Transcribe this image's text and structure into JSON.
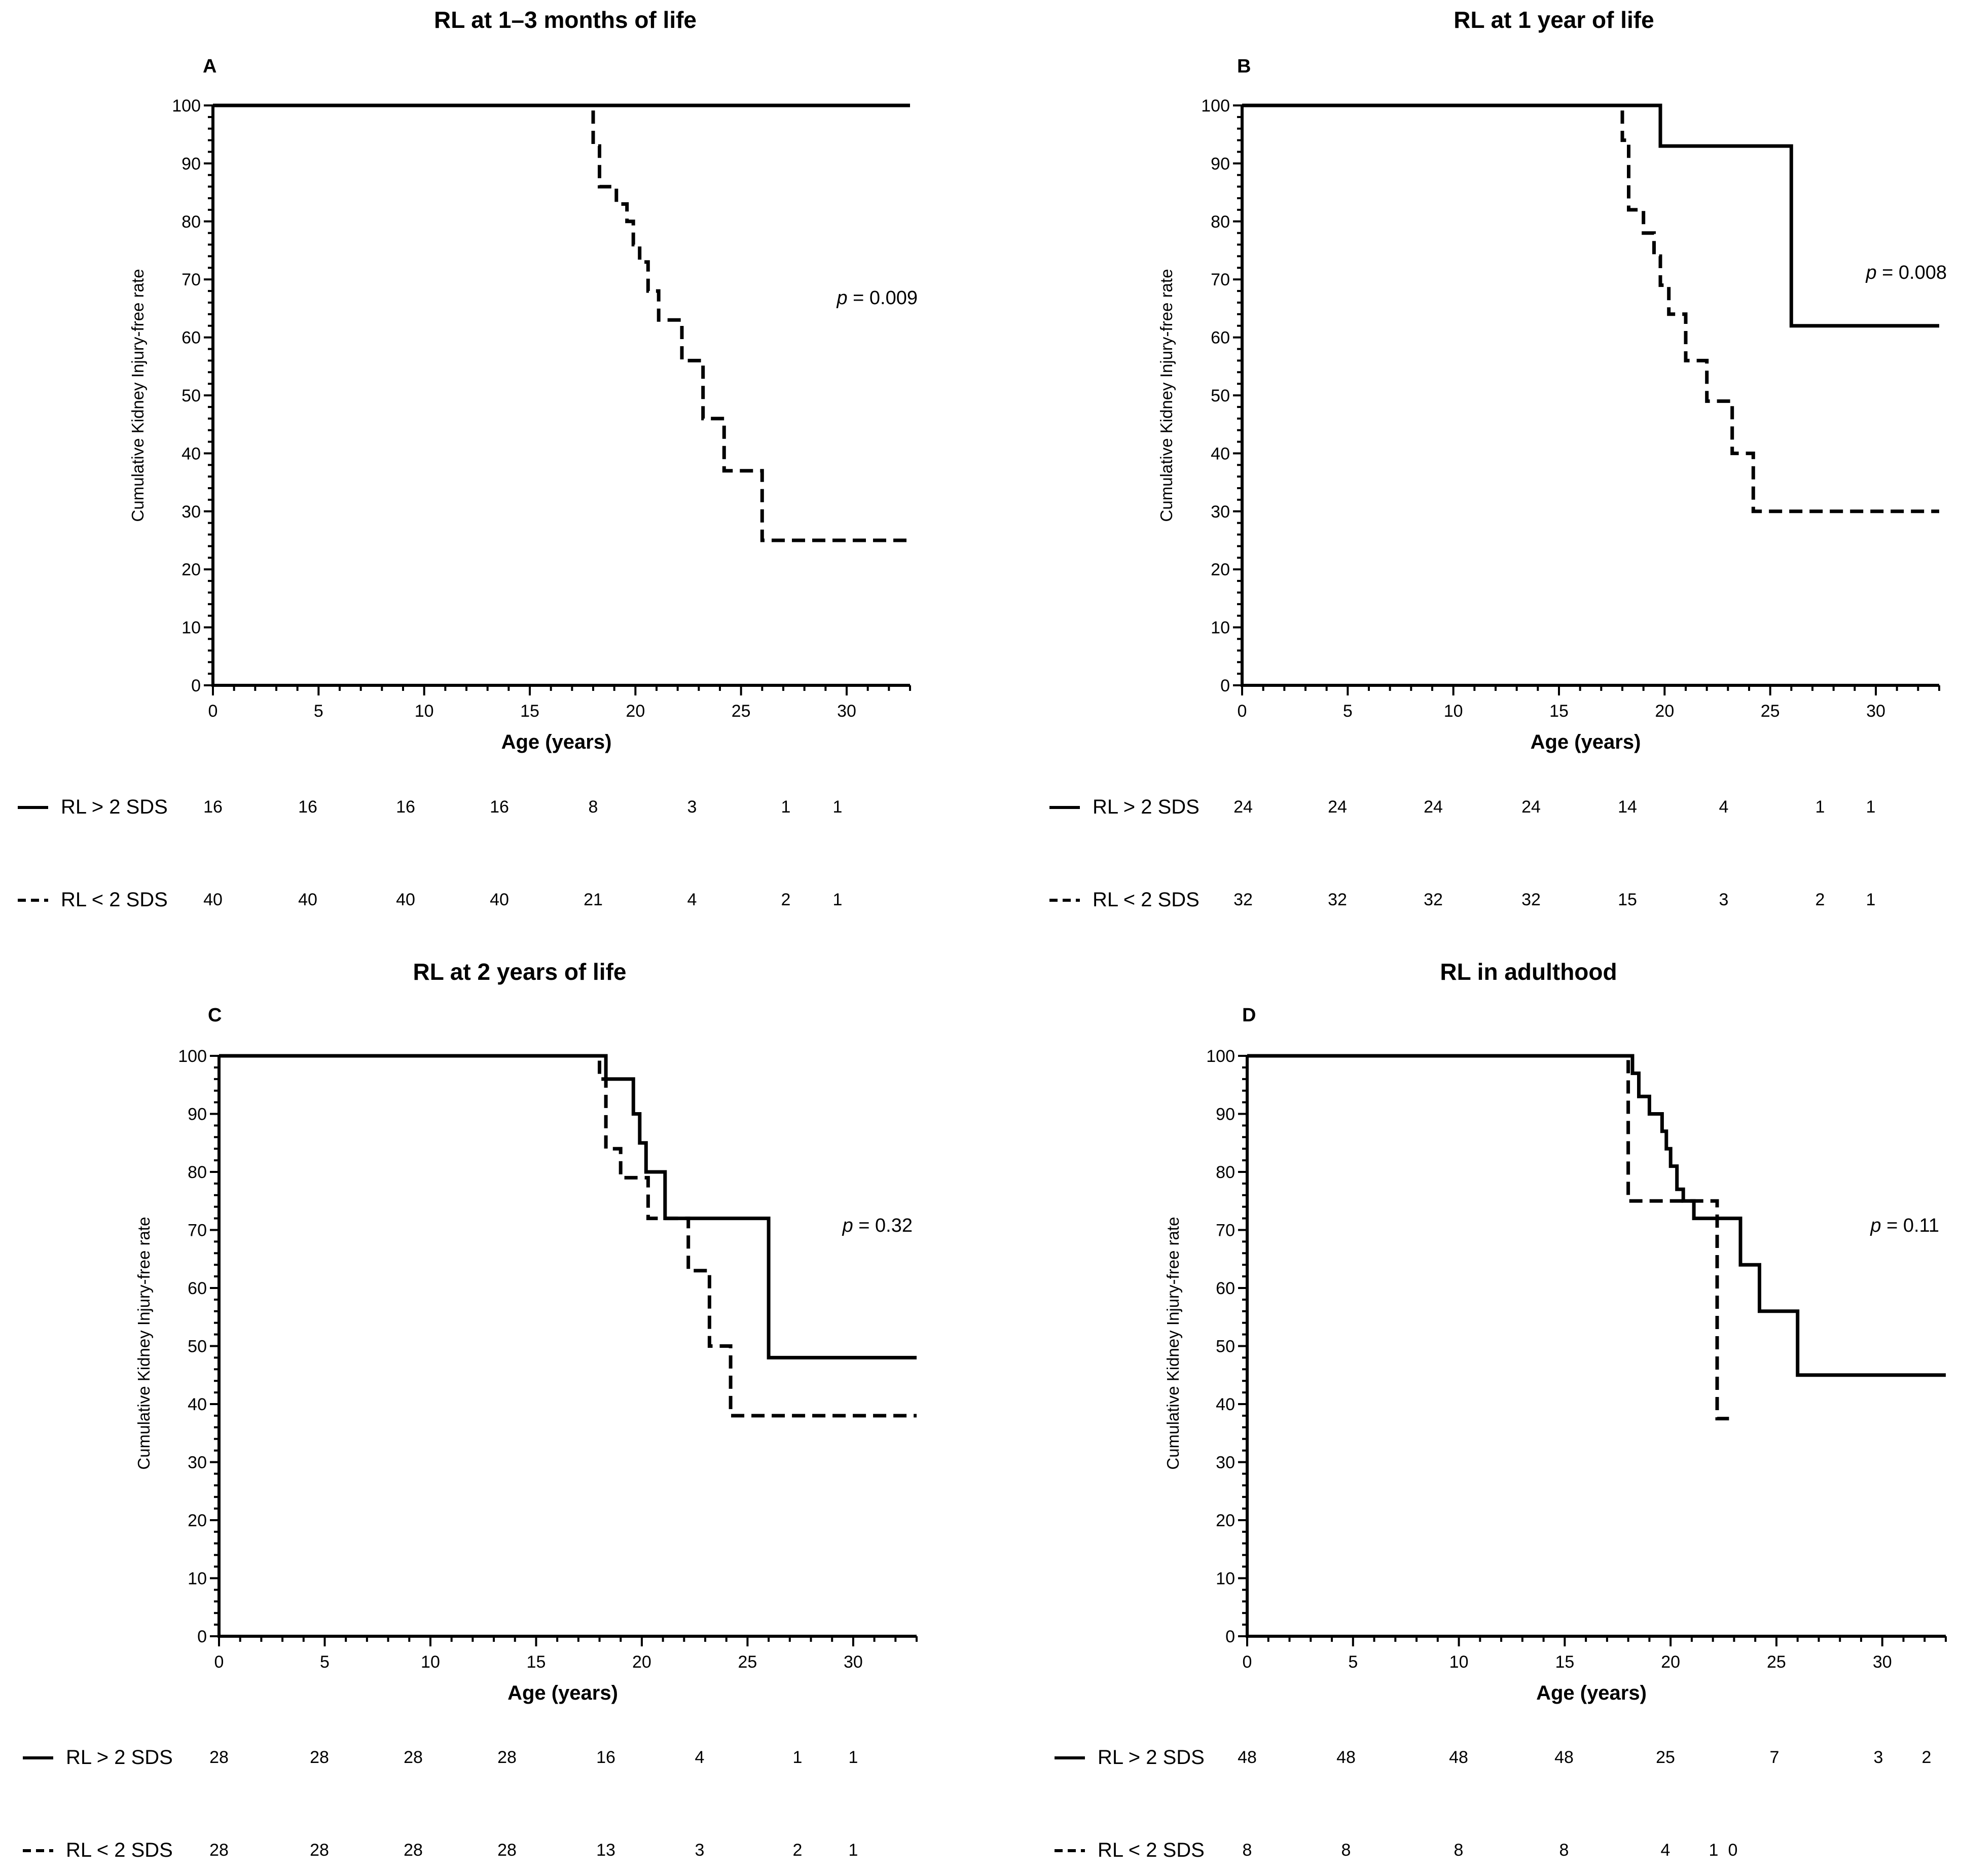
{
  "chart_data": [
    {
      "type": "line",
      "panel_letter": "A",
      "title": "RL at 1–3 months of life",
      "xlabel": "Age (years)",
      "ylabel": "Cumulative Kidney Injury-free rate",
      "xlim": [
        0,
        33
      ],
      "ylim": [
        0,
        100
      ],
      "xticks": [
        "0",
        "5",
        "10",
        "15",
        "20",
        "25",
        "30"
      ],
      "yticks": [
        "0",
        "10",
        "20",
        "30",
        "40",
        "50",
        "60",
        "70",
        "80",
        "90",
        "100"
      ],
      "p_prefix": "p",
      "p_value": " = 0.009",
      "series": [
        {
          "name": "RL > 2 SDS",
          "style": "solid",
          "x": [
            0,
            33
          ],
          "y": [
            100,
            100
          ]
        },
        {
          "name": "RL < 2 SDS",
          "style": "dashed",
          "x": [
            0,
            18.0,
            18.0,
            18.3,
            18.3,
            19.1,
            19.1,
            19.6,
            19.6,
            19.9,
            19.9,
            20.2,
            20.2,
            20.6,
            20.6,
            21.1,
            21.1,
            22.2,
            22.2,
            23.2,
            23.2,
            24.2,
            24.2,
            26.0,
            26.0,
            33
          ],
          "y": [
            100,
            100,
            93,
            93,
            86,
            86,
            83,
            83,
            80,
            80,
            76,
            76,
            73,
            73,
            68,
            68,
            63,
            63,
            56,
            56,
            46,
            46,
            37,
            37,
            25,
            25
          ]
        }
      ],
      "risk_table": {
        "rows": [
          {
            "label": "RL > 2 SDS",
            "style": "solid",
            "values": [
              "16",
              "16",
              "16",
              "16",
              "8",
              "3",
              "1",
              "1"
            ]
          },
          {
            "label": "RL < 2 SDS",
            "style": "dashed",
            "values": [
              "40",
              "40",
              "40",
              "40",
              "21",
              "4",
              "2",
              "1"
            ]
          }
        ]
      }
    },
    {
      "type": "line",
      "panel_letter": "B",
      "title": "RL at 1 year of life",
      "xlabel": "Age (years)",
      "ylabel": "Cumulative Kidney Injury-free rate",
      "xlim": [
        0,
        33
      ],
      "ylim": [
        0,
        100
      ],
      "xticks": [
        "0",
        "5",
        "10",
        "15",
        "20",
        "25",
        "30"
      ],
      "yticks": [
        "0",
        "10",
        "20",
        "30",
        "40",
        "50",
        "60",
        "70",
        "80",
        "90",
        "100"
      ],
      "p_prefix": "p",
      "p_value": " = 0.008",
      "series": [
        {
          "name": "RL > 2 SDS",
          "style": "solid",
          "x": [
            0,
            19.8,
            19.8,
            26.0,
            26.0,
            33
          ],
          "y": [
            100,
            100,
            93,
            93,
            62,
            62
          ]
        },
        {
          "name": "RL < 2 SDS",
          "style": "dashed",
          "x": [
            0,
            18.0,
            18.0,
            18.3,
            18.3,
            19.0,
            19.0,
            19.5,
            19.5,
            19.8,
            19.8,
            20.2,
            20.2,
            21.0,
            21.0,
            22.0,
            22.0,
            23.2,
            23.2,
            24.2,
            24.2,
            33
          ],
          "y": [
            100,
            100,
            94,
            94,
            82,
            82,
            78,
            78,
            74,
            74,
            69,
            69,
            64,
            64,
            56,
            56,
            49,
            49,
            40,
            40,
            30,
            30
          ]
        }
      ],
      "risk_table": {
        "rows": [
          {
            "label": "RL > 2 SDS",
            "style": "solid",
            "values": [
              "24",
              "24",
              "24",
              "24",
              "14",
              "4",
              "1",
              "1"
            ]
          },
          {
            "label": "RL < 2 SDS",
            "style": "dashed",
            "values": [
              "32",
              "32",
              "32",
              "32",
              "15",
              "3",
              "2",
              "1"
            ]
          }
        ]
      }
    },
    {
      "type": "line",
      "panel_letter": "C",
      "title": "RL at 2 years of life",
      "xlabel": "Age (years)",
      "ylabel": "Cumulative Kidney Injury-free rate",
      "xlim": [
        0,
        33
      ],
      "ylim": [
        0,
        100
      ],
      "xticks": [
        "0",
        "5",
        "10",
        "15",
        "20",
        "25",
        "30"
      ],
      "yticks": [
        "0",
        "10",
        "20",
        "30",
        "40",
        "50",
        "60",
        "70",
        "80",
        "90",
        "100"
      ],
      "p_prefix": "p",
      "p_value": " = 0.32",
      "series": [
        {
          "name": "RL > 2 SDS",
          "style": "solid",
          "x": [
            0,
            18.3,
            18.3,
            19.6,
            19.6,
            19.9,
            19.9,
            20.2,
            20.2,
            21.1,
            21.1,
            26.0,
            26.0,
            33
          ],
          "y": [
            100,
            100,
            96,
            96,
            90,
            90,
            85,
            85,
            80,
            80,
            72,
            72,
            48,
            48
          ]
        },
        {
          "name": "RL < 2 SDS",
          "style": "dashed",
          "x": [
            0,
            18.0,
            18.0,
            18.3,
            18.3,
            19.0,
            19.0,
            20.3,
            20.3,
            22.2,
            22.2,
            23.2,
            23.2,
            24.2,
            24.2,
            33
          ],
          "y": [
            100,
            100,
            96,
            96,
            84,
            84,
            79,
            79,
            72,
            72,
            63,
            63,
            50,
            50,
            38,
            38
          ]
        }
      ],
      "risk_table": {
        "rows": [
          {
            "label": "RL > 2 SDS",
            "style": "solid",
            "values": [
              "28",
              "28",
              "28",
              "28",
              "16",
              "4",
              "1",
              "1"
            ]
          },
          {
            "label": "RL < 2 SDS",
            "style": "dashed",
            "values": [
              "28",
              "28",
              "28",
              "28",
              "13",
              "3",
              "2",
              "1"
            ]
          }
        ]
      }
    },
    {
      "type": "line",
      "panel_letter": "D",
      "title": "RL in adulthood",
      "xlabel": "Age (years)",
      "ylabel": "Cumulative Kidney Injury-free rate",
      "xlim": [
        0,
        33
      ],
      "ylim": [
        0,
        100
      ],
      "xticks": [
        "0",
        "5",
        "10",
        "15",
        "20",
        "25",
        "30"
      ],
      "yticks": [
        "0",
        "10",
        "20",
        "30",
        "40",
        "50",
        "60",
        "70",
        "80",
        "90",
        "100"
      ],
      "p_prefix": "p",
      "p_value": " = 0.11",
      "series": [
        {
          "name": "RL > 2 SDS",
          "style": "solid",
          "x": [
            0,
            18.2,
            18.2,
            18.5,
            18.5,
            19.0,
            19.0,
            19.6,
            19.6,
            19.8,
            19.8,
            20.0,
            20.0,
            20.3,
            20.3,
            20.6,
            20.6,
            21.1,
            21.1,
            23.3,
            23.3,
            24.2,
            24.2,
            26.0,
            26.0,
            33
          ],
          "y": [
            100,
            100,
            97,
            97,
            93,
            93,
            90,
            90,
            87,
            87,
            84,
            84,
            81,
            81,
            77,
            77,
            75,
            75,
            72,
            72,
            64,
            64,
            56,
            56,
            45,
            45
          ]
        },
        {
          "name": "RL < 2 SDS",
          "style": "dashed",
          "x": [
            0,
            18.0,
            18.0,
            22.2,
            22.2,
            23.0
          ],
          "y": [
            100,
            100,
            75,
            75,
            37.5,
            37.5
          ]
        }
      ],
      "risk_table": {
        "rows": [
          {
            "label": "RL > 2 SDS",
            "style": "solid",
            "values": [
              "48",
              "48",
              "48",
              "48",
              "25",
              "7",
              "3",
              "2"
            ]
          },
          {
            "label": "RL < 2 SDS",
            "style": "dashed",
            "values": [
              "8",
              "8",
              "8",
              "8",
              "4",
              "1",
              "0"
            ]
          }
        ]
      }
    }
  ]
}
